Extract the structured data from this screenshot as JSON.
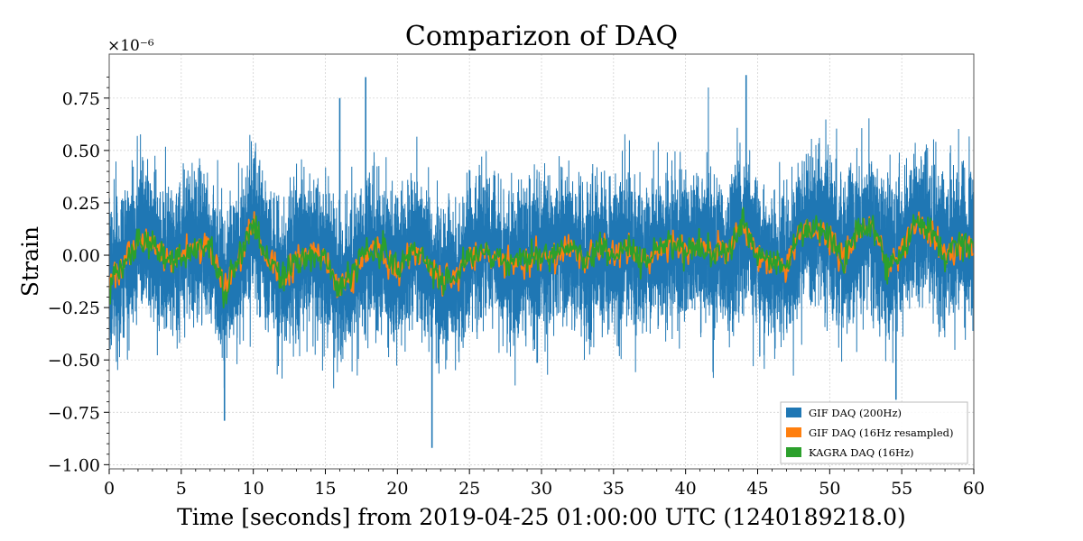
{
  "chart_data": {
    "type": "line",
    "title": "Comparizon of DAQ",
    "xlabel": "Time [seconds] from 2019-04-25 01:00:00 UTC (1240189218.0)",
    "ylabel": "Strain",
    "y_offset_label": "×10⁻⁶",
    "xlim": [
      0,
      60
    ],
    "ylim": [
      -1.02,
      0.96
    ],
    "x_ticks": [
      0,
      5,
      10,
      15,
      20,
      25,
      30,
      35,
      40,
      45,
      50,
      55,
      60
    ],
    "x_tick_labels": [
      "0",
      "5",
      "10",
      "15",
      "20",
      "25",
      "30",
      "35",
      "40",
      "45",
      "50",
      "55",
      "60"
    ],
    "y_ticks": [
      -1.0,
      -0.75,
      -0.5,
      -0.25,
      0.0,
      0.25,
      0.5,
      0.75
    ],
    "y_tick_labels": [
      "−1.00",
      "−0.75",
      "−0.50",
      "−0.25",
      "0.00",
      "0.25",
      "0.50",
      "0.75"
    ],
    "grid": true,
    "legend_position": "bottom-right",
    "colors": {
      "gif_200hz": "#1f77b4",
      "gif_16hz": "#ff7f0e",
      "kagra_16hz": "#2ca02c"
    },
    "slow_trend": {
      "x": [
        0,
        1,
        2,
        3,
        4,
        5,
        6,
        7,
        8,
        9,
        10,
        11,
        12,
        13,
        14,
        15,
        16,
        17,
        18,
        19,
        20,
        21,
        22,
        23,
        24,
        25,
        26,
        27,
        28,
        29,
        30,
        31,
        32,
        33,
        34,
        35,
        36,
        37,
        38,
        39,
        40,
        41,
        42,
        43,
        44,
        45,
        46,
        47,
        48,
        49,
        50,
        51,
        52,
        53,
        54,
        55,
        56,
        57,
        58,
        59,
        60
      ],
      "y": [
        -0.12,
        -0.04,
        0.05,
        0.06,
        -0.02,
        0.0,
        0.05,
        0.03,
        -0.15,
        -0.02,
        0.15,
        -0.03,
        -0.12,
        -0.02,
        0.01,
        -0.02,
        -0.16,
        -0.08,
        0.03,
        0.02,
        -0.08,
        0.02,
        -0.02,
        -0.12,
        -0.12,
        0.0,
        0.02,
        -0.02,
        -0.04,
        -0.02,
        0.0,
        0.0,
        0.05,
        -0.04,
        0.04,
        0.0,
        0.04,
        -0.03,
        0.01,
        0.05,
        0.02,
        0.04,
        0.0,
        0.02,
        0.16,
        0.0,
        -0.04,
        -0.06,
        0.12,
        0.12,
        0.08,
        -0.03,
        0.12,
        0.15,
        -0.06,
        0.02,
        0.15,
        0.12,
        0.0,
        0.05,
        0.06
      ]
    },
    "series": [
      {
        "name": "GIF DAQ (200Hz)",
        "sample_rate_hz": 200,
        "noise_amplitude": 0.17,
        "visible_range": [
          -0.92,
          0.86
        ],
        "spikes": [
          {
            "x": 22.4,
            "y": -0.92
          },
          {
            "x": 17.8,
            "y": 0.85
          },
          {
            "x": 44.2,
            "y": 0.86
          },
          {
            "x": 54.6,
            "y": -0.69
          },
          {
            "x": 8.0,
            "y": -0.79
          },
          {
            "x": 16.0,
            "y": 0.75
          }
        ]
      },
      {
        "name": "GIF DAQ (16Hz resampled)",
        "sample_rate_hz": 16,
        "noise_amplitude": 0.035,
        "visible_range": [
          -0.25,
          0.26
        ]
      },
      {
        "name": "KAGRA DAQ (16Hz)",
        "sample_rate_hz": 16,
        "noise_amplitude": 0.035,
        "visible_range": [
          -0.25,
          0.27
        ]
      }
    ]
  }
}
